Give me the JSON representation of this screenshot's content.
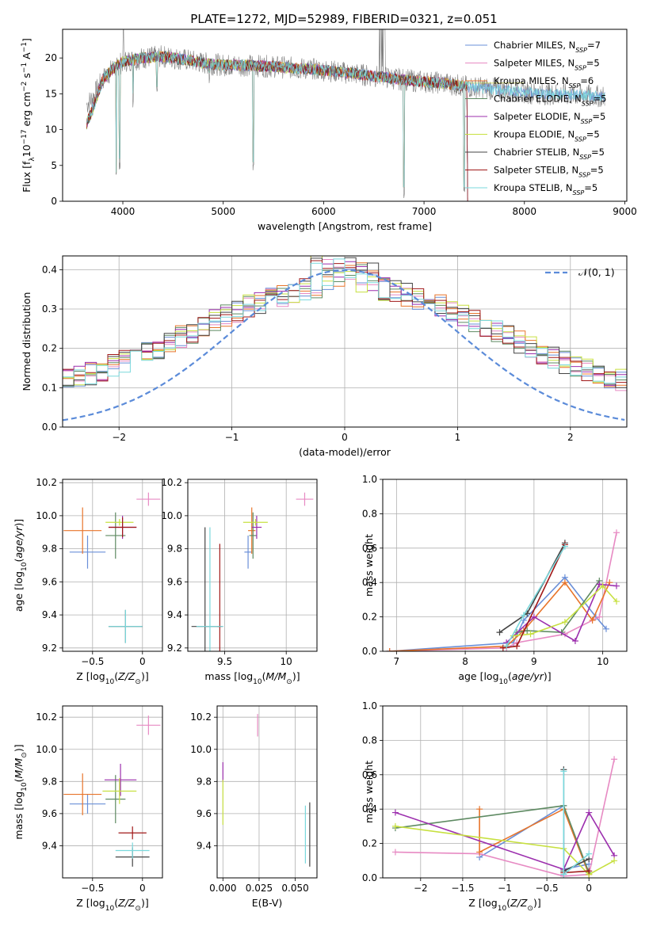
{
  "figure_title": "PLATE=1272, MJD=52989, FIBERID=0321, z=0.051",
  "colors": {
    "chabrier_miles": "#6a8fd8",
    "salpeter_miles": "#e78ac3",
    "kroupa_miles": "#e8742a",
    "chabrier_elodie": "#5e8a62",
    "salpeter_elodie": "#9c2fae",
    "kroupa_elodie": "#c7e040",
    "chabrier_stelib": "#444444",
    "salpeter_stelib": "#a01818",
    "kroupa_stelib": "#7ad8dc",
    "normal_curve": "#5b8bd9",
    "grid": "#b0b0b0",
    "data_spectrum": "#808080"
  },
  "legend": {
    "models": [
      {
        "key": "chabrier_miles",
        "base": "Chabrier MILES, N",
        "sub": "SSP",
        "tail": "=7"
      },
      {
        "key": "salpeter_miles",
        "base": "Salpeter MILES, N",
        "sub": "SSP",
        "tail": "=5"
      },
      {
        "key": "kroupa_miles",
        "base": "Kroupa MILES, N",
        "sub": "SSP",
        "tail": "=6"
      },
      {
        "key": "chabrier_elodie",
        "base": "Chabrier ELODIE, N",
        "sub": "SSP",
        "tail": "=5"
      },
      {
        "key": "salpeter_elodie",
        "base": "Salpeter ELODIE, N",
        "sub": "SSP",
        "tail": "=5"
      },
      {
        "key": "kroupa_elodie",
        "base": "Kroupa ELODIE, N",
        "sub": "SSP",
        "tail": "=5"
      },
      {
        "key": "chabrier_stelib",
        "base": "Chabrier STELIB, N",
        "sub": "SSP",
        "tail": "=5"
      },
      {
        "key": "salpeter_stelib",
        "base": "Salpeter STELIB, N",
        "sub": "SSP",
        "tail": "=5"
      },
      {
        "key": "kroupa_stelib",
        "base": "Kroupa STELIB, N",
        "sub": "SSP",
        "tail": "=5"
      }
    ],
    "normal_label": "𝒩(0, 1)"
  },
  "chart_data": [
    {
      "id": "spectrum",
      "type": "line",
      "xlabel": "wavelength [Angstrom, rest frame]",
      "ylabel": "Flux [f_λ 10^-17 erg cm^-2 s^-1 A^-1]",
      "xlim": [
        3400,
        9020
      ],
      "ylim": [
        0,
        24
      ],
      "xticks": [
        4000,
        5000,
        6000,
        7000,
        8000,
        9000
      ],
      "yticks": [
        0,
        5,
        10,
        15,
        20
      ],
      "data_range": [
        3640,
        8800
      ],
      "model_range": [
        3640,
        7430
      ],
      "continuum": [
        [
          3640,
          13.5
        ],
        [
          3700,
          14.5
        ],
        [
          3800,
          17
        ],
        [
          3900,
          18.5
        ],
        [
          4000,
          19.5
        ],
        [
          4200,
          20
        ],
        [
          4400,
          20.2
        ],
        [
          4600,
          19.8
        ],
        [
          4800,
          19.3
        ],
        [
          5000,
          19
        ],
        [
          5200,
          19
        ],
        [
          5500,
          18.8
        ],
        [
          5800,
          18.5
        ],
        [
          6000,
          18.3
        ],
        [
          6300,
          17.8
        ],
        [
          6600,
          17.3
        ],
        [
          6900,
          16.8
        ],
        [
          7200,
          16.5
        ],
        [
          7430,
          16
        ],
        [
          7600,
          15.8
        ],
        [
          7800,
          15.5
        ],
        [
          8000,
          15.2
        ],
        [
          8200,
          15
        ],
        [
          8400,
          14.9
        ],
        [
          8600,
          14.8
        ],
        [
          8800,
          14.6
        ]
      ],
      "absorption_features": [
        [
          3934,
          2
        ],
        [
          3968,
          4
        ],
        [
          4102,
          13
        ],
        [
          4340,
          14
        ],
        [
          4861,
          16
        ],
        [
          5175,
          17
        ],
        [
          5300,
          3.5
        ],
        [
          5893,
          17
        ],
        [
          6563,
          15
        ],
        [
          6800,
          0
        ],
        [
          7400,
          0
        ]
      ],
      "grid": false
    },
    {
      "id": "residual_hist",
      "type": "histogram",
      "xlabel": "(data-model)/error",
      "ylabel": "Normed distribution",
      "xlim": [
        -2.5,
        2.5
      ],
      "ylim": [
        0,
        0.435
      ],
      "xticks": [
        -2,
        -1,
        0,
        1,
        2
      ],
      "yticks": [
        0.0,
        0.1,
        0.2,
        0.3,
        0.4
      ],
      "bin_width": 0.1,
      "grid": true,
      "legend_position": "top-right"
    },
    {
      "id": "z_age",
      "type": "scatter",
      "xlabel": "Z [log10(Z/Z⊙)]",
      "ylabel": "age  [log10(age/yr)]",
      "xlim": [
        -0.8,
        0.2
      ],
      "ylim": [
        9.18,
        10.22
      ],
      "xticks": [
        -0.5,
        0.0
      ],
      "yticks": [
        9.2,
        9.4,
        9.6,
        9.8,
        10.0,
        10.2
      ],
      "points": [
        {
          "s": "chabrier_miles",
          "x": -0.55,
          "y": 9.78,
          "ex": 0.18,
          "ey": 0.1
        },
        {
          "s": "salpeter_miles",
          "x": 0.06,
          "y": 10.1,
          "ex": 0.12,
          "ey": 0.04
        },
        {
          "s": "kroupa_miles",
          "x": -0.6,
          "y": 9.91,
          "ex": 0.19,
          "ey": 0.14
        },
        {
          "s": "chabrier_elodie",
          "x": -0.27,
          "y": 9.88,
          "ex": 0.1,
          "ey": 0.14
        },
        {
          "s": "salpeter_elodie",
          "x": -0.2,
          "y": 9.93,
          "ex": 0.14,
          "ey": 0.07
        },
        {
          "s": "kroupa_elodie",
          "x": -0.23,
          "y": 9.96,
          "ex": 0.14,
          "ey": 0.02
        },
        {
          "s": "chabrier_stelib",
          "x": -0.17,
          "y": 9.33,
          "ex": 0.17,
          "ey": 0.1
        },
        {
          "s": "salpeter_stelib",
          "x": -0.2,
          "y": 9.93,
          "ex": 0.14,
          "ey": 0.06
        },
        {
          "s": "kroupa_stelib",
          "x": -0.17,
          "y": 9.33,
          "ex": 0.17,
          "ey": 0.1
        }
      ],
      "grid": true
    },
    {
      "id": "mass_age",
      "type": "scatter",
      "xlabel": "mass [log10(M/M⊙)]",
      "xlim": [
        9.2,
        10.25
      ],
      "ylim": [
        9.18,
        10.22
      ],
      "xticks": [
        9.5,
        10.0
      ],
      "yticks": [
        9.2,
        9.4,
        9.6,
        9.8,
        10.0,
        10.2
      ],
      "points": [
        {
          "s": "chabrier_miles",
          "x": 9.69,
          "y": 9.78,
          "ex": 0.03,
          "ey": 0.1
        },
        {
          "s": "salpeter_miles",
          "x": 10.15,
          "y": 10.1,
          "ex": 0.07,
          "ey": 0.04
        },
        {
          "s": "kroupa_miles",
          "x": 9.72,
          "y": 9.91,
          "ex": 0.03,
          "ey": 0.14
        },
        {
          "s": "chabrier_elodie",
          "x": 9.73,
          "y": 9.88,
          "ex": 0.03,
          "ey": 0.14
        },
        {
          "s": "salpeter_elodie",
          "x": 9.76,
          "y": 9.93,
          "ex": 0.04,
          "ey": 0.07
        },
        {
          "s": "kroupa_elodie",
          "x": 9.75,
          "y": 9.96,
          "ex": 0.1,
          "ey": 0.02
        },
        {
          "s": "chabrier_stelib",
          "x": 9.34,
          "y": 9.33,
          "ex": 0.11,
          "ey": 0.6
        },
        {
          "s": "salpeter_stelib",
          "x": 9.46,
          "y": 9.33,
          "ex": 0.02,
          "ey": 0.5
        },
        {
          "s": "kroupa_stelib",
          "x": 9.38,
          "y": 9.33,
          "ex": 0.11,
          "ey": 0.6
        }
      ],
      "grid": true
    },
    {
      "id": "age_weight",
      "type": "line",
      "xlabel": "age  [log10(age/yr)]",
      "ylabel": "mass weight",
      "xlim": [
        6.8,
        10.35
      ],
      "ylim": [
        0,
        1
      ],
      "xticks": [
        7,
        8,
        9,
        10
      ],
      "yticks": [
        0.0,
        0.2,
        0.4,
        0.6,
        0.8,
        1.0
      ],
      "series": [
        {
          "s": "chabrier_miles",
          "x": [
            6.9,
            8.7,
            8.85,
            9.45,
            9.9,
            10.05
          ],
          "y": [
            0.0,
            0.05,
            0.18,
            0.43,
            0.2,
            0.13
          ]
        },
        {
          "s": "salpeter_miles",
          "x": [
            6.9,
            8.6,
            8.75,
            9.45,
            9.95,
            10.2
          ],
          "y": [
            0.0,
            0.02,
            0.05,
            0.1,
            0.2,
            0.69
          ]
        },
        {
          "s": "kroupa_miles",
          "x": [
            6.9,
            8.6,
            8.85,
            9.45,
            9.85,
            10.1
          ],
          "y": [
            0.0,
            0.03,
            0.12,
            0.4,
            0.18,
            0.4
          ]
        },
        {
          "s": "chabrier_elodie",
          "x": [
            8.75,
            8.9,
            9.4,
            9.95
          ],
          "y": [
            0.11,
            0.12,
            0.11,
            0.41
          ]
        },
        {
          "s": "salpeter_elodie",
          "x": [
            8.6,
            9.0,
            9.6,
            9.95,
            10.2
          ],
          "y": [
            0.05,
            0.2,
            0.06,
            0.39,
            0.38
          ]
        },
        {
          "s": "kroupa_elodie",
          "x": [
            8.7,
            8.95,
            9.45,
            10.0,
            10.2
          ],
          "y": [
            0.09,
            0.1,
            0.17,
            0.38,
            0.29
          ]
        },
        {
          "s": "chabrier_stelib",
          "x": [
            8.5,
            8.9,
            9.45
          ],
          "y": [
            0.11,
            0.22,
            0.63
          ]
        },
        {
          "s": "salpeter_stelib",
          "x": [
            8.55,
            8.75,
            9.45
          ],
          "y": [
            0.02,
            0.03,
            0.62
          ]
        },
        {
          "s": "kroupa_stelib",
          "x": [
            8.6,
            8.85,
            9.45
          ],
          "y": [
            0.03,
            0.21,
            0.61
          ]
        }
      ],
      "grid": true
    },
    {
      "id": "z_mass",
      "type": "scatter",
      "xlabel": "Z [log10(Z/Z⊙)]",
      "ylabel": "mass [log10(M/M⊙)]",
      "xlim": [
        -0.8,
        0.2
      ],
      "ylim": [
        9.2,
        10.27
      ],
      "xticks": [
        -0.5,
        0.0
      ],
      "yticks": [
        9.4,
        9.6,
        9.8,
        10.0,
        10.2
      ],
      "points": [
        {
          "s": "chabrier_miles",
          "x": -0.55,
          "y": 9.66,
          "ex": 0.18,
          "ey": 0.06
        },
        {
          "s": "salpeter_miles",
          "x": 0.06,
          "y": 10.15,
          "ex": 0.12,
          "ey": 0.06
        },
        {
          "s": "kroupa_miles",
          "x": -0.6,
          "y": 9.72,
          "ex": 0.19,
          "ey": 0.13
        },
        {
          "s": "chabrier_elodie",
          "x": -0.27,
          "y": 9.69,
          "ex": 0.1,
          "ey": 0.15
        },
        {
          "s": "salpeter_elodie",
          "x": -0.22,
          "y": 9.81,
          "ex": 0.16,
          "ey": 0.1
        },
        {
          "s": "kroupa_elodie",
          "x": -0.23,
          "y": 9.74,
          "ex": 0.17,
          "ey": 0.08
        },
        {
          "s": "chabrier_stelib",
          "x": -0.1,
          "y": 9.33,
          "ex": 0.17,
          "ey": 0.06
        },
        {
          "s": "salpeter_stelib",
          "x": -0.1,
          "y": 9.48,
          "ex": 0.14,
          "ey": 0.04
        },
        {
          "s": "kroupa_stelib",
          "x": -0.1,
          "y": 9.37,
          "ex": 0.17,
          "ey": 0.05
        }
      ],
      "grid": true
    },
    {
      "id": "ebv_mass",
      "type": "scatter",
      "xlabel": "E(B-V)",
      "xlim": [
        -0.004,
        0.065
      ],
      "ylim": [
        9.2,
        10.27
      ],
      "xticks": [
        0.0,
        0.025,
        0.05
      ],
      "tick_labels": [
        "0.000",
        "0.025",
        "0.050"
      ],
      "yticks": [
        9.4,
        9.6,
        9.8,
        10.0,
        10.2
      ],
      "points": [
        {
          "s": "salpeter_miles",
          "x": 0.024,
          "y": 10.15,
          "ey": 0.07
        },
        {
          "s": "salpeter_elodie",
          "x": 0.0,
          "y": 9.86,
          "ey": 0.06
        },
        {
          "s": "kroupa_elodie",
          "x": 0.0,
          "y": 9.67,
          "ey": 0.14
        },
        {
          "s": "chabrier_stelib",
          "x": 0.06,
          "y": 9.47,
          "ey": 0.2
        },
        {
          "s": "kroupa_stelib",
          "x": 0.057,
          "y": 9.47,
          "ey": 0.18
        }
      ],
      "grid": true
    },
    {
      "id": "z_weight",
      "type": "line",
      "xlabel": "Z [log10(Z/Z⊙)]",
      "ylabel": "mass weight",
      "xlim": [
        -2.45,
        0.45
      ],
      "ylim": [
        0,
        1
      ],
      "xticks": [
        -2.0,
        -1.5,
        -1.0,
        -0.5,
        0.0
      ],
      "yticks": [
        0.0,
        0.2,
        0.4,
        0.6,
        0.8,
        1.0
      ],
      "series": [
        {
          "s": "chabrier_miles",
          "x": [
            -1.3,
            -0.3,
            -0.3,
            0.0
          ],
          "y": [
            0.12,
            0.42,
            0.05,
            0.08
          ]
        },
        {
          "s": "salpeter_miles",
          "x": [
            -2.3,
            -1.3,
            -0.3,
            0.0,
            0.3
          ],
          "y": [
            0.15,
            0.14,
            0.01,
            0.02,
            0.69
          ]
        },
        {
          "s": "kroupa_miles",
          "x": [
            -1.3,
            -1.3,
            -0.3,
            0.0
          ],
          "y": [
            0.4,
            0.15,
            0.4,
            0.02
          ]
        },
        {
          "s": "chabrier_elodie",
          "x": [
            -2.3,
            -0.3,
            0.0
          ],
          "y": [
            0.29,
            0.42,
            0.03
          ]
        },
        {
          "s": "salpeter_elodie",
          "x": [
            -2.3,
            -0.3,
            0.0,
            0.3
          ],
          "y": [
            0.38,
            0.05,
            0.38,
            0.13
          ]
        },
        {
          "s": "kroupa_elodie",
          "x": [
            -2.3,
            -0.3,
            0.0,
            0.3
          ],
          "y": [
            0.3,
            0.17,
            0.02,
            0.1
          ]
        },
        {
          "s": "chabrier_stelib",
          "x": [
            -0.3,
            -0.3,
            0.0
          ],
          "y": [
            0.63,
            0.04,
            0.11
          ]
        },
        {
          "s": "salpeter_stelib",
          "x": [
            -0.3,
            0.0
          ],
          "y": [
            0.03,
            0.04
          ]
        },
        {
          "s": "kroupa_stelib",
          "x": [
            -0.3,
            -0.3,
            0.0
          ],
          "y": [
            0.62,
            0.02,
            0.14
          ]
        }
      ],
      "grid": true
    }
  ]
}
